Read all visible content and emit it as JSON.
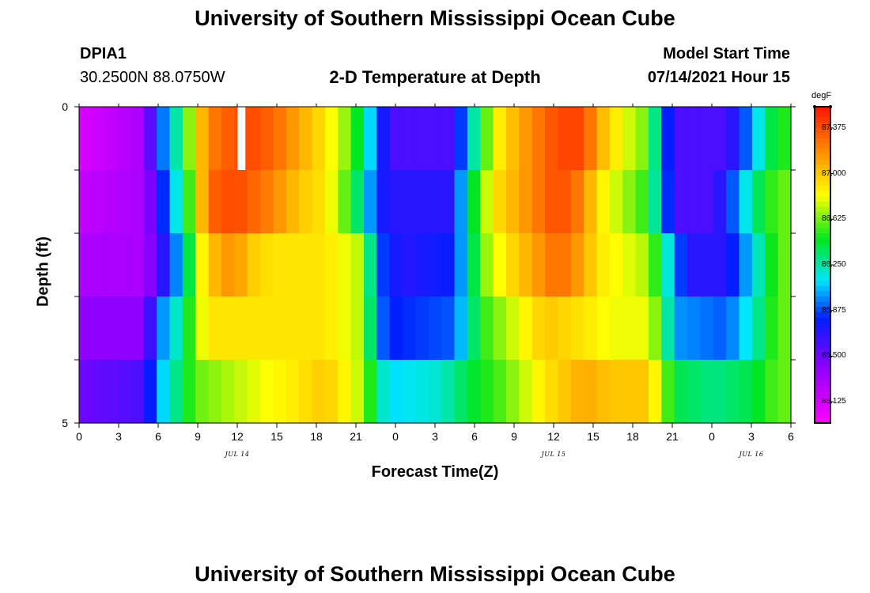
{
  "page": {
    "title_top": "University of Southern Mississippi Ocean Cube",
    "title_bottom": "University of Southern Mississippi Ocean Cube",
    "station_id": "DPIA1",
    "station_coords": "30.2500N  88.0750W",
    "plot_title": "2-D Temperature at Depth",
    "model_start_label": "Model Start Time",
    "model_start_value": "07/14/2021 Hour 15"
  },
  "chart_data": {
    "type": "heatmap",
    "title": "2-D Temperature at Depth",
    "xlabel": "Forecast Time(Z)",
    "ylabel": "Depth (ft)",
    "unit": "degF",
    "x_tick_labels": [
      "0",
      "3",
      "6",
      "9",
      "12",
      "15",
      "18",
      "21",
      "0",
      "3",
      "6",
      "9",
      "12",
      "15",
      "18",
      "21",
      "0",
      "3",
      "6"
    ],
    "date_labels": [
      {
        "text": "JUL 14",
        "hour_index": 12
      },
      {
        "text": "JUL 15",
        "hour_index": 36
      },
      {
        "text": "JUL 16",
        "hour_index": 51
      }
    ],
    "y_tick_labels": [
      "0",
      "5"
    ],
    "ylim": [
      0,
      5
    ],
    "hours": 55,
    "depth_rows": 5,
    "colorbar": {
      "unit": "degF",
      "min": 84.95,
      "max": 87.55,
      "ticks": [
        "87.375",
        "87.000",
        "86.625",
        "86.250",
        "85.875",
        "85.500",
        "85.125"
      ]
    },
    "missing_cell": {
      "hour_index": 12,
      "row_index": 0
    },
    "row_keyframes": [
      [
        [
          0,
          85.1
        ],
        [
          5,
          85.3
        ],
        [
          6,
          85.8
        ],
        [
          7,
          86.1
        ],
        [
          8,
          86.4
        ],
        [
          9,
          86.9
        ],
        [
          10,
          87.2
        ],
        [
          11,
          87.3
        ],
        [
          13,
          87.4
        ],
        [
          15,
          87.3
        ],
        [
          17,
          87.1
        ],
        [
          19,
          86.9
        ],
        [
          21,
          86.6
        ],
        [
          22,
          86.3
        ],
        [
          23,
          85.9
        ],
        [
          24,
          85.6
        ],
        [
          29,
          85.6
        ],
        [
          30,
          86.1
        ],
        [
          31,
          86.4
        ],
        [
          32,
          86.8
        ],
        [
          34,
          87.1
        ],
        [
          37,
          87.4
        ],
        [
          39,
          87.4
        ],
        [
          40,
          87.1
        ],
        [
          42,
          86.8
        ],
        [
          44,
          86.6
        ],
        [
          45,
          86.0
        ],
        [
          46,
          85.6
        ],
        [
          50,
          85.6
        ],
        [
          52,
          86.0
        ],
        [
          53,
          86.3
        ],
        [
          54,
          86.5
        ]
      ],
      [
        [
          0,
          85.2
        ],
        [
          5,
          85.3
        ],
        [
          7,
          86.0
        ],
        [
          8,
          86.3
        ],
        [
          9,
          86.8
        ],
        [
          10,
          87.3
        ],
        [
          12,
          87.4
        ],
        [
          15,
          87.2
        ],
        [
          17,
          87.0
        ],
        [
          19,
          86.9
        ],
        [
          21,
          86.5
        ],
        [
          22,
          86.2
        ],
        [
          23,
          85.8
        ],
        [
          24,
          85.7
        ],
        [
          29,
          85.7
        ],
        [
          30,
          86.3
        ],
        [
          31,
          86.6
        ],
        [
          32,
          86.9
        ],
        [
          34,
          87.1
        ],
        [
          37,
          87.4
        ],
        [
          39,
          87.2
        ],
        [
          40,
          86.9
        ],
        [
          42,
          86.7
        ],
        [
          44,
          86.5
        ],
        [
          46,
          85.6
        ],
        [
          49,
          85.6
        ],
        [
          51,
          86.0
        ],
        [
          52,
          86.3
        ],
        [
          54,
          86.6
        ]
      ],
      [
        [
          0,
          85.3
        ],
        [
          5,
          85.3
        ],
        [
          8,
          86.1
        ],
        [
          9,
          86.7
        ],
        [
          10,
          87.0
        ],
        [
          12,
          87.2
        ],
        [
          13,
          87.0
        ],
        [
          15,
          86.9
        ],
        [
          19,
          86.9
        ],
        [
          22,
          86.7
        ],
        [
          23,
          85.9
        ],
        [
          25,
          85.7
        ],
        [
          29,
          85.8
        ],
        [
          30,
          86.2
        ],
        [
          31,
          86.6
        ],
        [
          33,
          86.9
        ],
        [
          35,
          87.1
        ],
        [
          37,
          87.3
        ],
        [
          39,
          87.1
        ],
        [
          40,
          86.9
        ],
        [
          42,
          86.8
        ],
        [
          44,
          86.7
        ],
        [
          46,
          86.0
        ],
        [
          47,
          85.7
        ],
        [
          50,
          85.7
        ],
        [
          52,
          86.1
        ],
        [
          54,
          86.6
        ]
      ],
      [
        [
          0,
          85.4
        ],
        [
          5,
          85.4
        ],
        [
          6,
          85.9
        ],
        [
          8,
          86.3
        ],
        [
          9,
          86.7
        ],
        [
          10,
          86.9
        ],
        [
          14,
          86.9
        ],
        [
          19,
          86.9
        ],
        [
          22,
          86.7
        ],
        [
          23,
          86.0
        ],
        [
          24,
          85.8
        ],
        [
          29,
          85.9
        ],
        [
          30,
          86.2
        ],
        [
          31,
          86.5
        ],
        [
          33,
          86.7
        ],
        [
          36,
          87.0
        ],
        [
          39,
          86.9
        ],
        [
          41,
          86.8
        ],
        [
          44,
          86.8
        ],
        [
          45,
          86.5
        ],
        [
          46,
          86.0
        ],
        [
          50,
          85.9
        ],
        [
          52,
          86.2
        ],
        [
          54,
          86.6
        ]
      ],
      [
        [
          0,
          85.5
        ],
        [
          5,
          85.6
        ],
        [
          6,
          86.0
        ],
        [
          7,
          86.2
        ],
        [
          8,
          86.4
        ],
        [
          9,
          86.6
        ],
        [
          14,
          86.8
        ],
        [
          17,
          86.9
        ],
        [
          19,
          87.0
        ],
        [
          22,
          86.7
        ],
        [
          23,
          86.3
        ],
        [
          24,
          86.1
        ],
        [
          28,
          86.2
        ],
        [
          30,
          86.4
        ],
        [
          33,
          86.6
        ],
        [
          36,
          86.9
        ],
        [
          39,
          87.1
        ],
        [
          41,
          87.0
        ],
        [
          44,
          87.0
        ],
        [
          45,
          86.7
        ],
        [
          46,
          86.4
        ],
        [
          49,
          86.3
        ],
        [
          52,
          86.4
        ],
        [
          54,
          86.6
        ]
      ]
    ]
  }
}
